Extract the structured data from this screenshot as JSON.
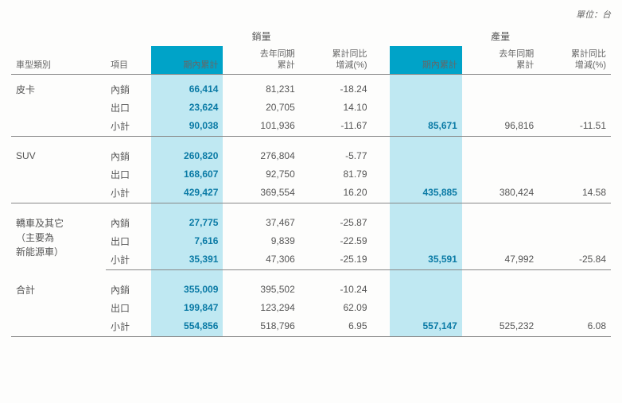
{
  "unit_label": "單位：台",
  "columns": {
    "vehicle_type": "車型類別",
    "item": "項目",
    "sales_group": "銷量",
    "prod_group": "產量",
    "period_cum": "期內累計",
    "last_year_cum_l1": "去年同期",
    "last_year_cum_l2": "累計",
    "yoy_pct_l1": "累計同比",
    "yoy_pct_l2": "增減(%)"
  },
  "items": {
    "domestic": "內銷",
    "export": "出口",
    "subtotal": "小計"
  },
  "groups": [
    {
      "name": "皮卡",
      "rows": [
        {
          "item": "domestic",
          "s_cum": "66,414",
          "s_prev": "81,231",
          "s_pct": "-18.24",
          "p_cum": "",
          "p_prev": "",
          "p_pct": ""
        },
        {
          "item": "export",
          "s_cum": "23,624",
          "s_prev": "20,705",
          "s_pct": "14.10",
          "p_cum": "",
          "p_prev": "",
          "p_pct": ""
        },
        {
          "item": "subtotal",
          "s_cum": "90,038",
          "s_prev": "101,936",
          "s_pct": "-11.67",
          "p_cum": "85,671",
          "p_prev": "96,816",
          "p_pct": "-11.51"
        }
      ]
    },
    {
      "name": "SUV",
      "rows": [
        {
          "item": "domestic",
          "s_cum": "260,820",
          "s_prev": "276,804",
          "s_pct": "-5.77",
          "p_cum": "",
          "p_prev": "",
          "p_pct": ""
        },
        {
          "item": "export",
          "s_cum": "168,607",
          "s_prev": "92,750",
          "s_pct": "81.79",
          "p_cum": "",
          "p_prev": "",
          "p_pct": ""
        },
        {
          "item": "subtotal",
          "s_cum": "429,427",
          "s_prev": "369,554",
          "s_pct": "16.20",
          "p_cum": "435,885",
          "p_prev": "380,424",
          "p_pct": "14.58"
        }
      ]
    },
    {
      "name": "轎車及其它\n（主要為\n新能源車）",
      "rows": [
        {
          "item": "domestic",
          "s_cum": "27,775",
          "s_prev": "37,467",
          "s_pct": "-25.87",
          "p_cum": "",
          "p_prev": "",
          "p_pct": ""
        },
        {
          "item": "export",
          "s_cum": "7,616",
          "s_prev": "9,839",
          "s_pct": "-22.59",
          "p_cum": "",
          "p_prev": "",
          "p_pct": ""
        },
        {
          "item": "subtotal",
          "s_cum": "35,391",
          "s_prev": "47,306",
          "s_pct": "-25.19",
          "p_cum": "35,591",
          "p_prev": "47,992",
          "p_pct": "-25.84"
        }
      ]
    },
    {
      "name": "合計",
      "rows": [
        {
          "item": "domestic",
          "s_cum": "355,009",
          "s_prev": "395,502",
          "s_pct": "-10.24",
          "p_cum": "",
          "p_prev": "",
          "p_pct": ""
        },
        {
          "item": "export",
          "s_cum": "199,847",
          "s_prev": "123,294",
          "s_pct": "62.09",
          "p_cum": "",
          "p_prev": "",
          "p_pct": ""
        },
        {
          "item": "subtotal",
          "s_cum": "554,856",
          "s_prev": "518,796",
          "s_pct": "6.95",
          "p_cum": "557,147",
          "p_prev": "525,232",
          "p_pct": "6.08"
        }
      ]
    }
  ]
}
